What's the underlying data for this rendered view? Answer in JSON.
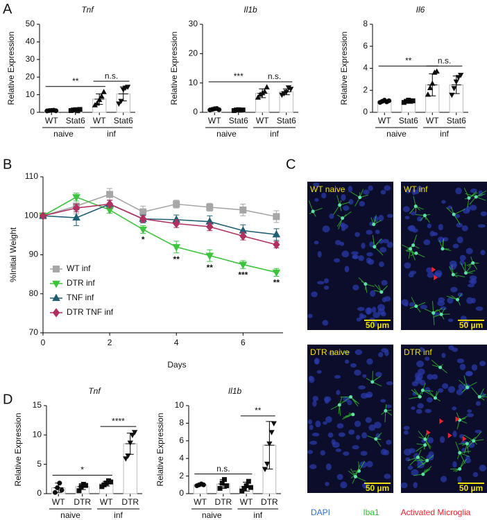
{
  "panel_labels": [
    "A",
    "B",
    "C",
    "D"
  ],
  "chart_data": [
    {
      "type": "bar",
      "title": "Tnf",
      "ylabel": "Relative Expression",
      "categories": [
        "WT",
        "Stat6",
        "WT",
        "Stat6"
      ],
      "groups": [
        "naive",
        "inf"
      ],
      "values": [
        1,
        1.3,
        7.5,
        10.5
      ],
      "errors": [
        0.2,
        0.4,
        3,
        4
      ],
      "points": [
        [
          0.8,
          1,
          1.1,
          1.2,
          0.9
        ],
        [
          1,
          1.3,
          1.5,
          0.9,
          1.6
        ],
        [
          4,
          5,
          7,
          9,
          11.5
        ],
        [
          5,
          6.5,
          13,
          14,
          14.5
        ]
      ],
      "markers": [
        "circle",
        "square",
        "triangle-up",
        "triangle-down"
      ],
      "ylim": [
        0,
        50
      ],
      "yticks": [
        0,
        10,
        20,
        30,
        40,
        50
      ],
      "annotations": [
        {
          "text": "**",
          "between": [
            0,
            2
          ]
        },
        {
          "text": "n.s.",
          "between": [
            2,
            3
          ]
        }
      ]
    },
    {
      "type": "bar",
      "title": "Il1b",
      "ylabel": "Relative Expression",
      "categories": [
        "WT",
        "Stat6",
        "WT",
        "Stat6"
      ],
      "groups": [
        "naive",
        "inf"
      ],
      "values": [
        1,
        0.8,
        6.5,
        7
      ],
      "errors": [
        0.2,
        0.15,
        1.5,
        1
      ],
      "points": [
        [
          0.8,
          1,
          1.2,
          1.3,
          0.9
        ],
        [
          0.6,
          0.8,
          0.9,
          0.7,
          0.8
        ],
        [
          5,
          6,
          6.5,
          7,
          8.5
        ],
        [
          6,
          6.5,
          7,
          8.5,
          8
        ]
      ],
      "markers": [
        "circle",
        "square",
        "triangle-up",
        "triangle-down"
      ],
      "ylim": [
        0,
        30
      ],
      "yticks": [
        0,
        10,
        20,
        30
      ],
      "annotations": [
        {
          "text": "***",
          "between": [
            0,
            2
          ]
        },
        {
          "text": "n.s.",
          "between": [
            2,
            3
          ]
        }
      ]
    },
    {
      "type": "bar",
      "title": "Il6",
      "ylabel": "Relative Expression",
      "categories": [
        "WT",
        "Stat6",
        "WT",
        "Stat6"
      ],
      "groups": [
        "naive",
        "inf"
      ],
      "values": [
        1,
        1,
        2.5,
        2.5
      ],
      "errors": [
        0.1,
        0.1,
        1,
        0.8
      ],
      "points": [
        [
          0.9,
          1,
          1.1,
          0.95,
          1.05
        ],
        [
          0.9,
          1,
          1.1,
          1,
          1.05
        ],
        [
          1.6,
          2.2,
          2.6,
          3.6,
          3.7
        ],
        [
          1.6,
          2.2,
          2.8,
          3.2,
          3.4
        ]
      ],
      "markers": [
        "circle",
        "square",
        "triangle-up",
        "triangle-down"
      ],
      "ylim": [
        0,
        8
      ],
      "yticks": [
        0,
        2,
        4,
        6,
        8
      ],
      "annotations": [
        {
          "text": "**",
          "between": [
            0,
            2
          ]
        },
        {
          "text": "n.s.",
          "between": [
            2,
            3
          ]
        }
      ]
    },
    {
      "type": "line",
      "xlabel": "Days",
      "ylabel": "%Initial Weight",
      "x": [
        0,
        1,
        2,
        3,
        4,
        5,
        6,
        7
      ],
      "series": [
        {
          "name": "WT inf",
          "color": "#a6a6a6",
          "marker": "square",
          "values": [
            100,
            102.5,
            105.5,
            101,
            103,
            102.2,
            101.5,
            99.8
          ],
          "errors": [
            0,
            2,
            1.5,
            1.5,
            1,
            1,
            1.5,
            1.5
          ]
        },
        {
          "name": "DTR inf",
          "color": "#3cc43c",
          "marker": "triangle-down",
          "values": [
            100,
            104.8,
            101.5,
            96.5,
            92,
            89.8,
            87.5,
            85.5
          ],
          "errors": [
            0,
            1,
            0.8,
            1,
            1.5,
            1.5,
            1,
            1
          ]
        },
        {
          "name": "TNF inf",
          "color": "#1f5f73",
          "marker": "triangle-up",
          "values": [
            100,
            99.5,
            103,
            99.2,
            99,
            98.5,
            96.2,
            95.2
          ],
          "errors": [
            0,
            2,
            1,
            1,
            1.2,
            1.5,
            1.5,
            1.5
          ]
        },
        {
          "name": "DTR TNF inf",
          "color": "#b0305f",
          "marker": "diamond",
          "values": [
            100,
            102,
            103,
            99.2,
            98,
            97.2,
            94.8,
            92.6
          ],
          "errors": [
            0,
            1,
            1,
            0.8,
            1,
            1,
            1,
            0.8
          ]
        }
      ],
      "xlim": [
        0,
        7.2
      ],
      "xticks": [
        0,
        2,
        4,
        6
      ],
      "ylim": [
        70,
        110
      ],
      "yticks": [
        70,
        80,
        90,
        100,
        110
      ],
      "legend": "lower left",
      "annotations": [
        {
          "x": 3,
          "text": "*"
        },
        {
          "x": 4,
          "text": "**"
        },
        {
          "x": 5,
          "text": "**"
        },
        {
          "x": 6,
          "text": "***"
        },
        {
          "x": 7,
          "text": "**"
        }
      ]
    },
    {
      "type": "bar",
      "title": "Tnf",
      "ylabel": "Relative Expression",
      "categories": [
        "WT",
        "DTR",
        "WT",
        "DTR"
      ],
      "groups": [
        "naive",
        "inf"
      ],
      "values": [
        1,
        1.2,
        1.7,
        8.5
      ],
      "errors": [
        0.8,
        0.5,
        0.4,
        1.8
      ],
      "points": [
        [
          0.2,
          1,
          1.8,
          0.6
        ],
        [
          0.5,
          1.2,
          1.6,
          1.4
        ],
        [
          1.2,
          1.5,
          1.8,
          2.2,
          2
        ],
        [
          6,
          6.5,
          8.7,
          10,
          10.5
        ]
      ],
      "markers": [
        "circle",
        "square",
        "square",
        "triangle-down"
      ],
      "ylim": [
        0,
        15
      ],
      "yticks": [
        0,
        5,
        10,
        15
      ],
      "annotations": [
        {
          "text": "*",
          "between": [
            0,
            2
          ]
        },
        {
          "text": "****",
          "between": [
            2,
            3
          ]
        }
      ]
    },
    {
      "type": "bar",
      "title": "Il1b",
      "ylabel": "Relative Expression",
      "categories": [
        "WT",
        "DTR",
        "WT",
        "DTR"
      ],
      "groups": [
        "naive",
        "inf"
      ],
      "values": [
        1,
        1.1,
        0.8,
        5.5
      ],
      "errors": [
        0.1,
        0.5,
        0.5,
        2.7
      ],
      "points": [
        [
          0.9,
          1,
          1.1,
          1
        ],
        [
          0.6,
          1.2,
          1.6,
          0.9
        ],
        [
          0.3,
          0.6,
          0.9,
          1.4,
          0.7
        ],
        [
          2.8,
          3.4,
          5.7,
          7,
          8
        ]
      ],
      "markers": [
        "circle",
        "square",
        "square",
        "triangle-down"
      ],
      "ylim": [
        0,
        10
      ],
      "yticks": [
        0,
        2,
        4,
        6,
        8,
        10
      ],
      "annotations": [
        {
          "text": "n.s.",
          "between": [
            0,
            2
          ]
        },
        {
          "text": "**",
          "between": [
            2,
            3
          ]
        }
      ]
    }
  ],
  "micrographs": {
    "panels": [
      "WT naive",
      "WT inf",
      "DTR naive",
      "DTR inf"
    ],
    "scale_bar": "50 µm",
    "legend": [
      {
        "text": "DAPI",
        "color": "#2f6fd0"
      },
      {
        "text": "Iba1",
        "color": "#2ec02e"
      },
      {
        "text": "Activated Microglia",
        "color": "#e8262c"
      }
    ]
  }
}
